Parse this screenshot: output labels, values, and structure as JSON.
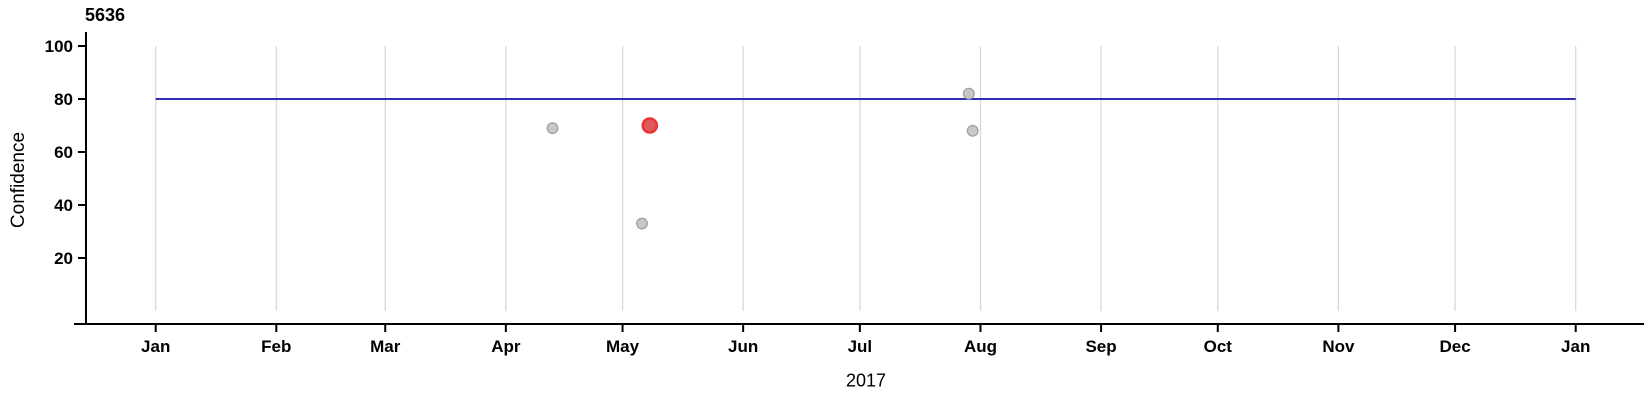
{
  "window": {
    "background": "#ffffff"
  },
  "chart_data": {
    "type": "scatter",
    "title": "5636",
    "xlabel": "2017",
    "ylabel": "Confidence",
    "legend": "none",
    "x_axis": {
      "kind": "time-months",
      "tick_labels": [
        "Jan",
        "Feb",
        "Mar",
        "Apr",
        "May",
        "Jun",
        "Jul",
        "Aug",
        "Sep",
        "Oct",
        "Nov",
        "Dec",
        "Jan"
      ],
      "tick_day_of_year": [
        0,
        31,
        59,
        90,
        120,
        151,
        181,
        212,
        243,
        273,
        304,
        334,
        365
      ],
      "range_days": [
        0,
        365
      ],
      "grid": true
    },
    "y_axis": {
      "tick_values": [
        20,
        40,
        60,
        80,
        100
      ],
      "range": [
        0,
        100
      ],
      "grid": false
    },
    "reference_line": {
      "value": 80,
      "span_days": [
        0,
        365
      ]
    },
    "points": [
      {
        "day_of_year": 102,
        "value": 69,
        "state": "normal"
      },
      {
        "day_of_year": 125,
        "value": 33,
        "state": "normal"
      },
      {
        "day_of_year": 127,
        "value": 70,
        "state": "selected"
      },
      {
        "day_of_year": 209,
        "value": 82,
        "state": "normal"
      },
      {
        "day_of_year": 210,
        "value": 68,
        "state": "normal"
      }
    ],
    "colors": {
      "reference_line": "#1111b0",
      "grid_line": "#d8d8d8",
      "axis": "#000000",
      "text": "#000000",
      "point_fill": "#c8c8c8",
      "point_stroke": "#a0a0a0",
      "selected_point_fill": "#dd5c5c",
      "selected_point_stroke": "#e83535"
    }
  }
}
